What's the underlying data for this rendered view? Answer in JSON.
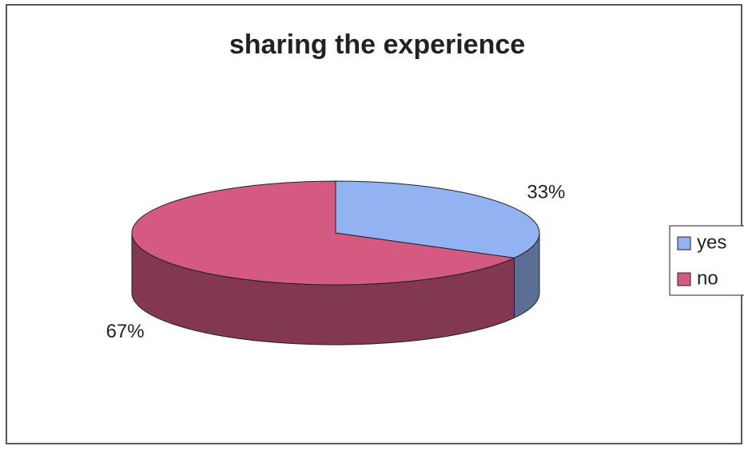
{
  "chart_data": {
    "type": "pie",
    "title": "sharing the experience",
    "categories": [
      "yes",
      "no"
    ],
    "values": [
      33,
      67
    ],
    "value_labels": [
      "33%",
      "67%"
    ],
    "colors": [
      "#92b2f2",
      "#d45a82"
    ],
    "legend": "right"
  }
}
